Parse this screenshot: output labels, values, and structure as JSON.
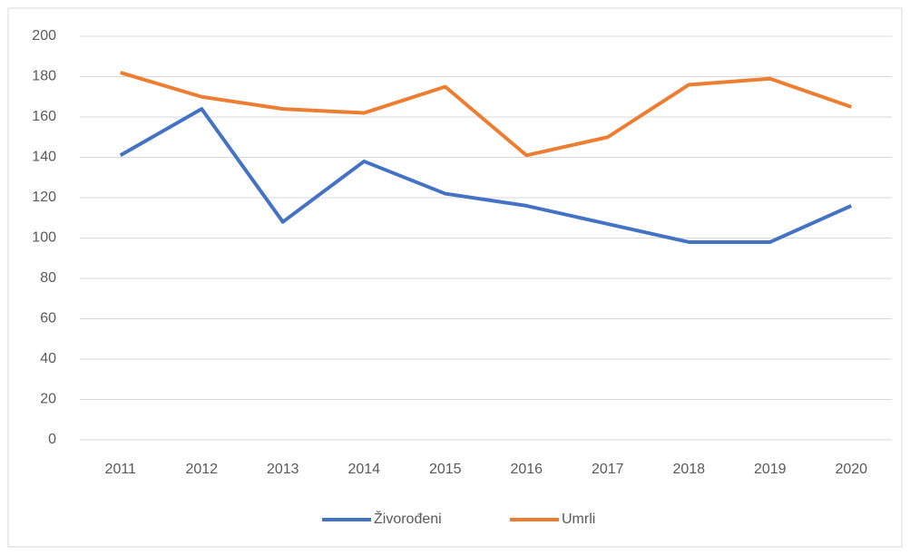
{
  "chart_data": {
    "type": "line",
    "categories": [
      "2011",
      "2012",
      "2013",
      "2014",
      "2015",
      "2016",
      "2017",
      "2018",
      "2019",
      "2020"
    ],
    "series": [
      {
        "name": "Živorođeni",
        "color": "#4472c4",
        "values": [
          141,
          164,
          108,
          138,
          122,
          116,
          107,
          98,
          98,
          116
        ]
      },
      {
        "name": "Umrli",
        "color": "#ed7d31",
        "values": [
          182,
          170,
          164,
          162,
          175,
          141,
          150,
          176,
          179,
          165
        ]
      }
    ],
    "ylim": [
      0,
      200
    ],
    "yticks": [
      0,
      20,
      40,
      60,
      80,
      100,
      120,
      140,
      160,
      180,
      200
    ],
    "grid": true,
    "legend": "bottom"
  }
}
